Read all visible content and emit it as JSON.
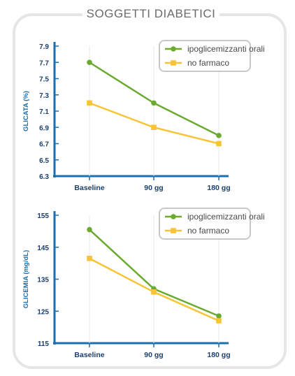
{
  "title": "SOGGETTI DIABETICI",
  "colors": {
    "green": "#6aaa2e",
    "yellow": "#f7c433",
    "axis": "#1b6fae",
    "ticktext": "#1b3f6e",
    "frame": "#e6e6e6",
    "legend_border": "#c8c8c8"
  },
  "chart_data": [
    {
      "type": "line",
      "categories": [
        "Baseline",
        "90 gg",
        "180 gg"
      ],
      "ylabel": "GLICATA (%)",
      "ylim": [
        6.3,
        7.9
      ],
      "yticks": [
        "6.3",
        "6.5",
        "6.7",
        "6.9",
        "7.1",
        "7.3",
        "7.5",
        "7.7",
        "7.9"
      ],
      "legend_position": "top-right",
      "series": [
        {
          "name": "ipoglicemizzanti orali",
          "values": [
            7.7,
            7.2,
            6.8
          ],
          "marker": "circle",
          "color": "#6aaa2e"
        },
        {
          "name": "no farmaco",
          "values": [
            7.2,
            6.9,
            6.7
          ],
          "marker": "square",
          "color": "#f7c433"
        }
      ]
    },
    {
      "type": "line",
      "categories": [
        "Baseline",
        "90 gg",
        "180 gg"
      ],
      "ylabel": "GLICEMIA (mg/dL)",
      "ylim": [
        115,
        155
      ],
      "yticks": [
        "115",
        "125",
        "135",
        "145",
        "155"
      ],
      "legend_position": "top-right",
      "series": [
        {
          "name": "ipoglicemizzanti orali",
          "values": [
            150.5,
            132,
            123.5
          ],
          "marker": "circle",
          "color": "#6aaa2e"
        },
        {
          "name": "no farmaco",
          "values": [
            141.5,
            131,
            122
          ],
          "marker": "square",
          "color": "#f7c433"
        }
      ]
    }
  ]
}
